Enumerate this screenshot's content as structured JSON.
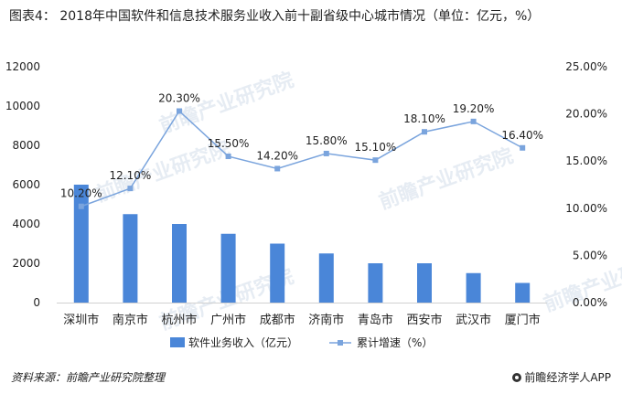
{
  "title": "图表4： 2018年中国软件和信息技术服务业收入前十副省级中心城市情况（单位：亿元，%）",
  "source": "资料来源：前瞻产业研究院整理",
  "brand": "前瞻经济学人APP",
  "watermark": "前瞻产业研究院",
  "colors": {
    "bar": "#4a86d8",
    "line": "#7aa4dd",
    "text": "#222222",
    "grid": "#e6e6e6"
  },
  "chart_data": {
    "type": "bar",
    "categories": [
      "深圳市",
      "南京市",
      "杭州市",
      "广州市",
      "成都市",
      "济南市",
      "青岛市",
      "西安市",
      "武汉市",
      "厦门市"
    ],
    "series": [
      {
        "name": "软件业务收入（亿元）",
        "type": "bar",
        "axis": "left",
        "values": [
          6000,
          4500,
          4000,
          3500,
          3000,
          2500,
          2000,
          2000,
          1500,
          1000
        ]
      },
      {
        "name": "累计增速（%）",
        "type": "line",
        "axis": "right",
        "values": [
          10.2,
          12.1,
          20.3,
          15.5,
          14.2,
          15.8,
          15.1,
          18.1,
          19.2,
          16.4
        ]
      }
    ],
    "data_labels": [
      "10.20%",
      "12.10%",
      "20.30%",
      "15.50%",
      "14.20%",
      "15.80%",
      "15.10%",
      "18.10%",
      "19.20%",
      "16.40%"
    ],
    "y_left": {
      "min": 0,
      "max": 12000,
      "ticks": [
        "0",
        "2000",
        "4000",
        "6000",
        "8000",
        "10000",
        "12000"
      ]
    },
    "y_right": {
      "min": 0,
      "max": 25,
      "ticks": [
        "0.00%",
        "5.00%",
        "10.00%",
        "15.00%",
        "20.00%",
        "25.00%"
      ]
    },
    "grid": false,
    "legend_position": "bottom"
  }
}
